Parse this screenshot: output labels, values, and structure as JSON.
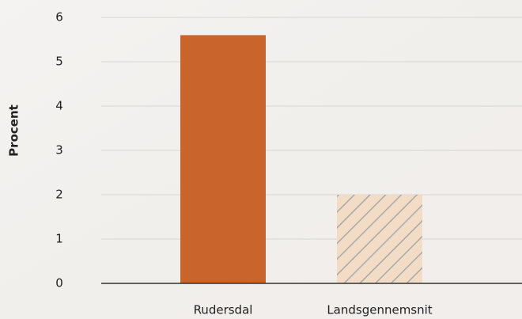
{
  "chart_data": {
    "type": "bar",
    "y_label": "Procent",
    "categories": [
      "Rudersdal",
      "Landsgennemsnit"
    ],
    "values": [
      5.6,
      2.0
    ],
    "colors": [
      "#c8642c",
      "#f3dcc6"
    ],
    "hatch": [
      false,
      true
    ],
    "ylim": [
      0,
      6
    ],
    "yticks": [
      0,
      1,
      2,
      3,
      4,
      5,
      6
    ],
    "grid": true
  }
}
